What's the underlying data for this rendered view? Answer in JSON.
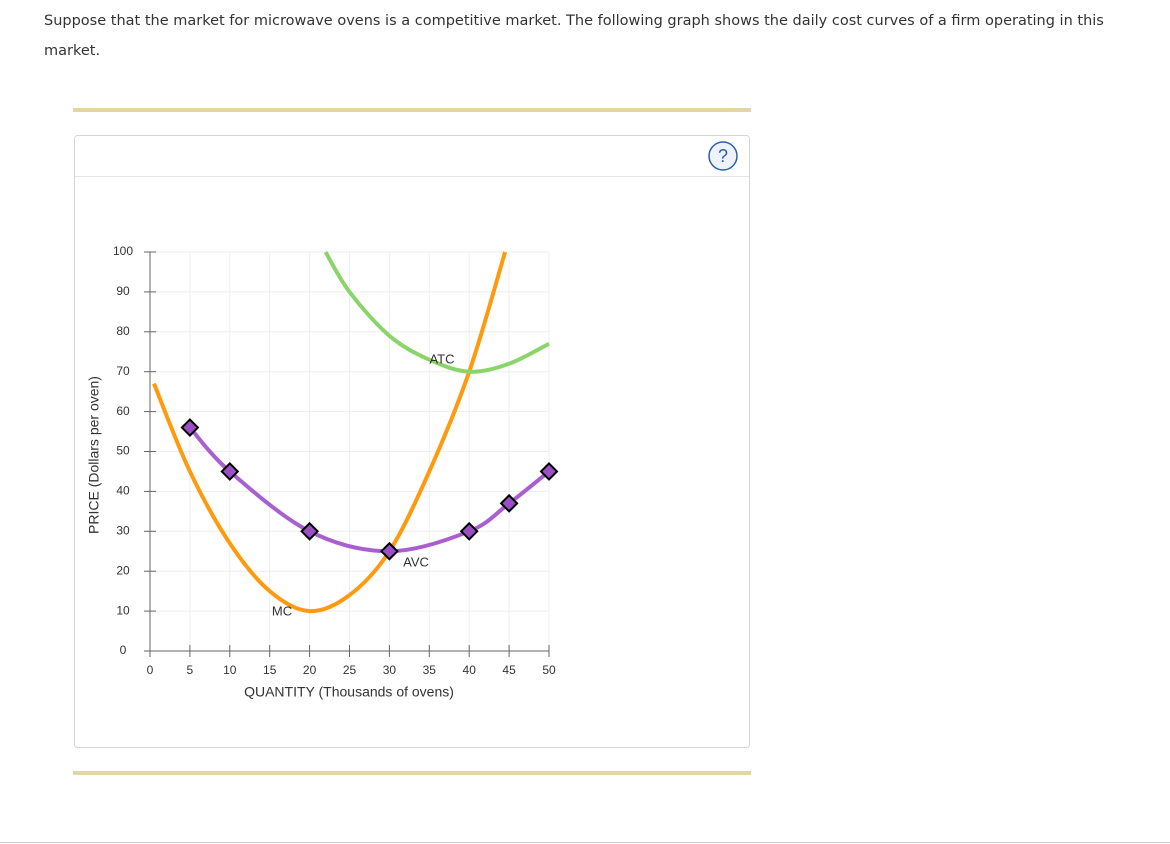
{
  "question": "Suppose that the market for microwave ovens is a competitive market. The following graph shows the daily cost curves of a firm operating in this market.",
  "chart_data": {
    "type": "line",
    "xlabel": "QUANTITY (Thousands of ovens)",
    "ylabel": "PRICE (Dollars per oven)",
    "xlim": [
      0,
      50
    ],
    "ylim": [
      0,
      100
    ],
    "xticks": [
      0,
      5,
      10,
      15,
      20,
      25,
      30,
      35,
      40,
      45,
      50
    ],
    "yticks": [
      0,
      10,
      20,
      30,
      40,
      50,
      60,
      70,
      80,
      90,
      100
    ],
    "grid": true,
    "series": [
      {
        "name": "MC",
        "color": "#ff9a0f",
        "x": [
          0.5,
          5,
          10,
          15,
          20,
          25,
          30,
          35,
          40,
          44.5
        ],
        "values": [
          67,
          45,
          27,
          15,
          10,
          14,
          25,
          45,
          70,
          100
        ]
      },
      {
        "name": "AVC",
        "color": "#a95fd0",
        "marker": "diamond",
        "x": [
          5,
          10,
          20,
          30,
          40,
          45,
          50
        ],
        "values": [
          56,
          45,
          30,
          25,
          30,
          37,
          45
        ]
      },
      {
        "name": "ATC",
        "color": "#8ad46a",
        "x": [
          22,
          25,
          30,
          35,
          40,
          45,
          50
        ],
        "values": [
          100,
          90,
          79,
          73,
          70,
          72,
          77
        ]
      }
    ]
  }
}
